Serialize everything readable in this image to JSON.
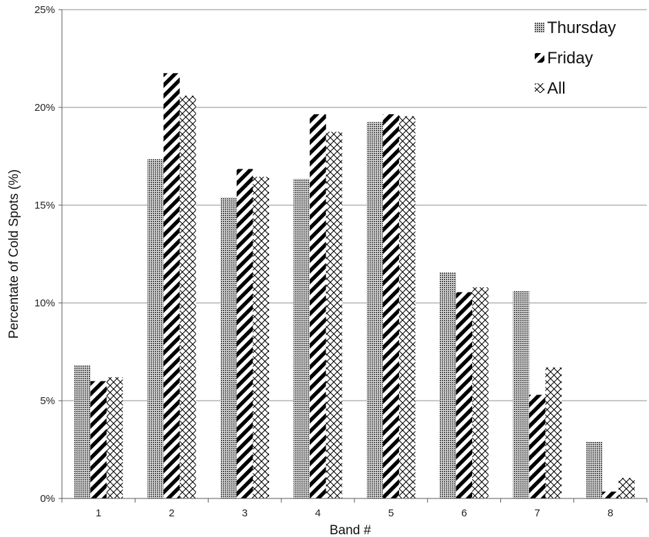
{
  "chart_data": {
    "type": "bar",
    "title": "",
    "xlabel": "Band #",
    "ylabel": "Percentate of Cold Spots (%)",
    "categories": [
      "1",
      "2",
      "3",
      "4",
      "5",
      "6",
      "7",
      "8"
    ],
    "ylim": [
      0,
      25
    ],
    "yticks": [
      0,
      5,
      10,
      15,
      20,
      25
    ],
    "ytick_labels": [
      "0%",
      "5%",
      "10%",
      "15%",
      "20%",
      "25%"
    ],
    "grid": true,
    "legend_position": "top-right",
    "series": [
      {
        "name": "Thursday",
        "pattern": "dots",
        "values": [
          6.8,
          17.35,
          15.4,
          16.35,
          19.25,
          11.55,
          10.6,
          2.9
        ]
      },
      {
        "name": "Friday",
        "pattern": "diagonal-stripes",
        "values": [
          6.0,
          21.75,
          16.85,
          19.65,
          19.65,
          10.55,
          5.3,
          0.35
        ]
      },
      {
        "name": "All",
        "pattern": "crosshatch",
        "values": [
          6.2,
          20.6,
          16.45,
          18.75,
          19.55,
          10.8,
          6.7,
          1.05
        ]
      }
    ],
    "colors": {
      "ink": "#000000",
      "grid": "#8c8c8c",
      "axis": "#595959",
      "background": "#ffffff"
    }
  }
}
